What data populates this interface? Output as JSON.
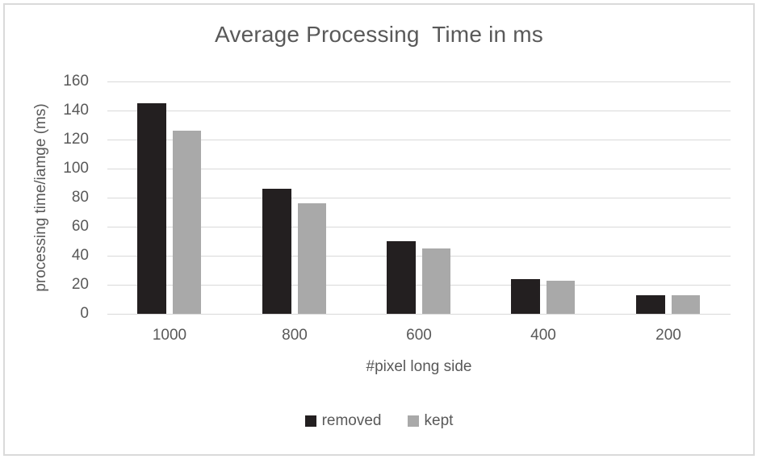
{
  "chart_data": {
    "type": "bar",
    "title": "Average Processing  Time in ms",
    "xlabel": "#pixel long side",
    "ylabel": "processing time/iamge (ms)",
    "categories": [
      "1000",
      "800",
      "600",
      "400",
      "200"
    ],
    "series": [
      {
        "name": "removed",
        "color": "#231f20",
        "values": [
          145,
          86,
          50,
          24,
          13
        ]
      },
      {
        "name": "kept",
        "color": "#a9a9a9",
        "values": [
          126,
          76,
          45,
          23,
          13
        ]
      }
    ],
    "ylim": [
      0,
      160
    ],
    "ytick_step": 20,
    "yticks": [
      0,
      20,
      40,
      60,
      80,
      100,
      120,
      140,
      160
    ],
    "grid": true,
    "legend_position": "bottom"
  },
  "colors": {
    "text": "#595959",
    "gridline": "#d9d9d9",
    "frame_border": "#dadada",
    "background": "#ffffff"
  }
}
